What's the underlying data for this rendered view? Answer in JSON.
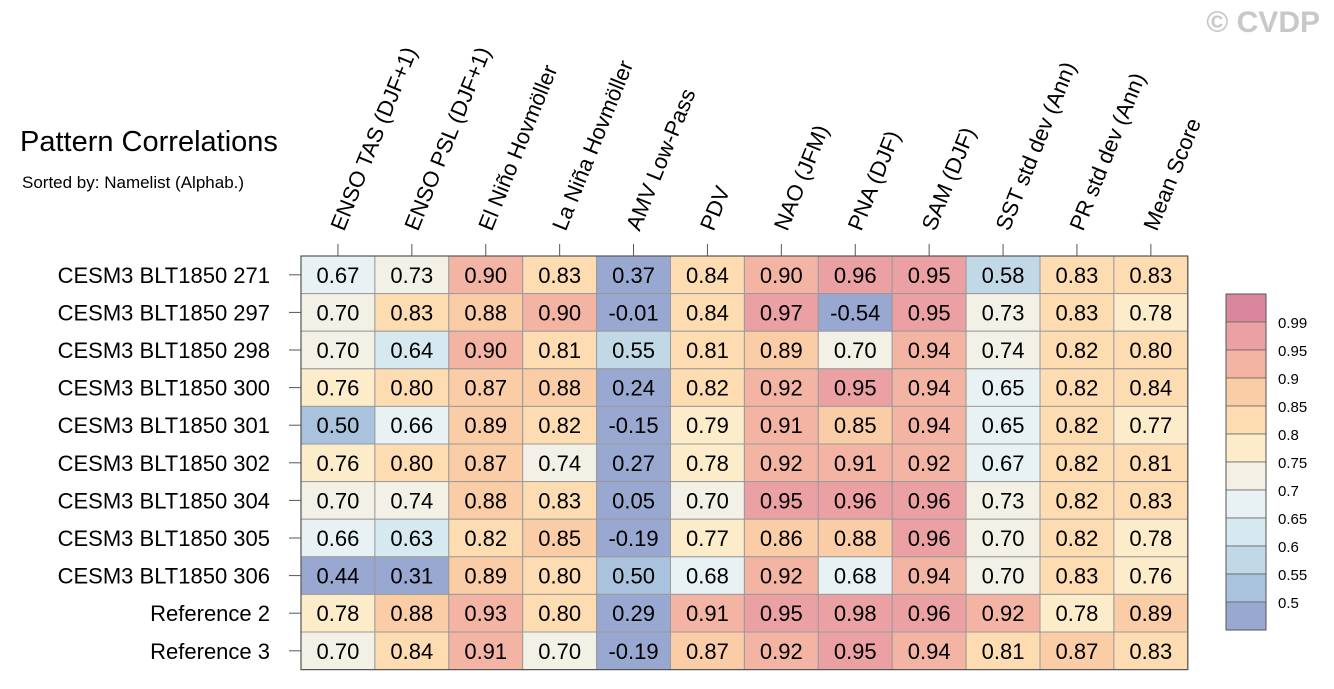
{
  "header": {
    "title": "Pattern Correlations",
    "subtitle": "Sorted by: Namelist (Alphab.)",
    "watermark": "© CVDP"
  },
  "chart_data": {
    "type": "heatmap",
    "title": "Pattern Correlations",
    "subtitle": "Sorted by: Namelist (Alphab.)",
    "columns": [
      "ENSO TAS (DJF+1)",
      "ENSO PSL (DJF+1)",
      "El Niño Hovmöller",
      "La Niña Hovmöller",
      "AMV Low-Pass",
      "PDV",
      "NAO (JFM)",
      "PNA (DJF)",
      "SAM (DJF)",
      "SST std dev (Ann)",
      "PR std dev (Ann)",
      "Mean Score"
    ],
    "rows": [
      "CESM3 BLT1850 271",
      "CESM3 BLT1850 297",
      "CESM3 BLT1850 298",
      "CESM3 BLT1850 300",
      "CESM3 BLT1850 301",
      "CESM3 BLT1850 302",
      "CESM3 BLT1850 304",
      "CESM3 BLT1850 305",
      "CESM3 BLT1850 306",
      "Reference 2",
      "Reference 3"
    ],
    "values": [
      [
        0.67,
        0.73,
        0.9,
        0.83,
        0.37,
        0.84,
        0.9,
        0.96,
        0.95,
        0.58,
        0.83,
        0.83
      ],
      [
        0.7,
        0.83,
        0.88,
        0.9,
        -0.01,
        0.84,
        0.97,
        -0.54,
        0.95,
        0.73,
        0.83,
        0.78
      ],
      [
        0.7,
        0.64,
        0.9,
        0.81,
        0.55,
        0.81,
        0.89,
        0.7,
        0.94,
        0.74,
        0.82,
        0.8
      ],
      [
        0.76,
        0.8,
        0.87,
        0.88,
        0.24,
        0.82,
        0.92,
        0.95,
        0.94,
        0.65,
        0.82,
        0.84
      ],
      [
        0.5,
        0.66,
        0.89,
        0.82,
        -0.15,
        0.79,
        0.91,
        0.85,
        0.94,
        0.65,
        0.82,
        0.77
      ],
      [
        0.76,
        0.8,
        0.87,
        0.74,
        0.27,
        0.78,
        0.92,
        0.91,
        0.92,
        0.67,
        0.82,
        0.81
      ],
      [
        0.7,
        0.74,
        0.88,
        0.83,
        0.05,
        0.7,
        0.95,
        0.96,
        0.96,
        0.73,
        0.82,
        0.83
      ],
      [
        0.66,
        0.63,
        0.82,
        0.85,
        -0.19,
        0.77,
        0.86,
        0.88,
        0.96,
        0.7,
        0.82,
        0.78
      ],
      [
        0.44,
        0.31,
        0.89,
        0.8,
        0.5,
        0.68,
        0.92,
        0.68,
        0.94,
        0.7,
        0.83,
        0.76
      ],
      [
        0.78,
        0.88,
        0.93,
        0.8,
        0.29,
        0.91,
        0.95,
        0.98,
        0.96,
        0.92,
        0.78,
        0.89
      ],
      [
        0.7,
        0.84,
        0.91,
        0.7,
        -0.19,
        0.87,
        0.92,
        0.95,
        0.94,
        0.81,
        0.87,
        0.83
      ]
    ],
    "colorbar": {
      "levels": [
        0.5,
        0.55,
        0.6,
        0.65,
        0.7,
        0.75,
        0.8,
        0.85,
        0.9,
        0.95,
        0.99
      ],
      "labels": [
        "0.5",
        "0.55",
        "0.6",
        "0.65",
        "0.7",
        "0.75",
        "0.8",
        "0.85",
        "0.9",
        "0.95",
        "0.99"
      ],
      "colors": [
        "#99a8d0",
        "#a9c2dd",
        "#c1d8e7",
        "#d6e8f0",
        "#e8f2f5",
        "#f3f1e6",
        "#fcecc9",
        "#fddcb2",
        "#fbcda7",
        "#f4b4a4",
        "#eba1a3",
        "#da869c"
      ]
    }
  }
}
